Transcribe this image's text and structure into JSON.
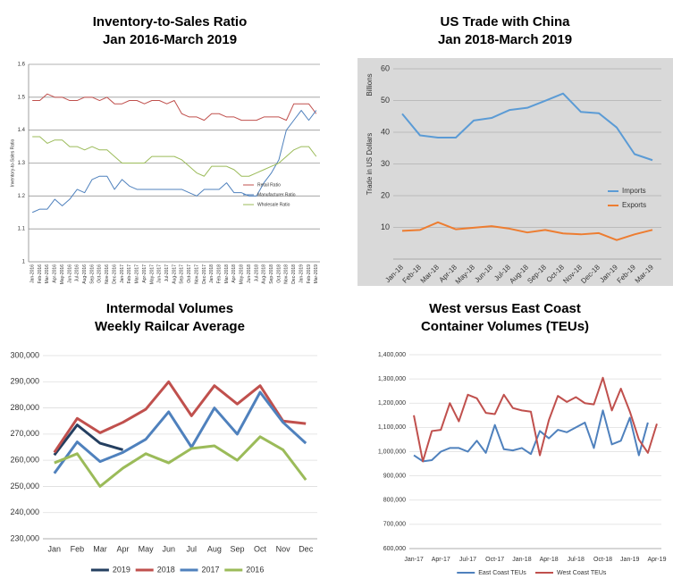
{
  "chart_data": [
    {
      "type": "line",
      "title": "Inventory-to-Sales Ratio",
      "subtitle": "Jan 2016-March 2019",
      "ylabel": "Inventory-to-Sales Ratio",
      "categories": [
        "Jan-2016",
        "Feb-2016",
        "Mar-2016",
        "Apr-2016",
        "May-2016",
        "Jun-2016",
        "Jul-2016",
        "Aug-2016",
        "Sep-2016",
        "Oct-2016",
        "Nov-2016",
        "Dec-2016",
        "Jan-2017",
        "Feb-2017",
        "Mar-2017",
        "Apr-2017",
        "May-2017",
        "Jun-2017",
        "Jul-2017",
        "Aug-2017",
        "Sep-2017",
        "Oct-2017",
        "Nov-2017",
        "Dec-2017",
        "Jan-2018",
        "Feb-2018",
        "Mar-2018",
        "Apr-2018",
        "May-2018",
        "Jun-2018",
        "Jul-2018",
        "Aug-2018",
        "Sep-2018",
        "Oct-2018",
        "Nov-2018",
        "Dec-2018",
        "Jan-2019",
        "Feb-2019",
        "Mar-2019"
      ],
      "series": [
        {
          "name": "Retail Ratio",
          "color": "#c0504d",
          "values": [
            1.49,
            1.49,
            1.51,
            1.5,
            1.5,
            1.49,
            1.49,
            1.5,
            1.5,
            1.49,
            1.5,
            1.48,
            1.48,
            1.49,
            1.49,
            1.48,
            1.49,
            1.49,
            1.48,
            1.49,
            1.45,
            1.44,
            1.44,
            1.43,
            1.45,
            1.45,
            1.44,
            1.44,
            1.43,
            1.43,
            1.43,
            1.44,
            1.44,
            1.44,
            1.43,
            1.48,
            1.48,
            1.48,
            1.45
          ]
        },
        {
          "name": "Manufacturer Ratio",
          "color": "#4f81bd",
          "values": [
            1.15,
            1.16,
            1.16,
            1.19,
            1.17,
            1.19,
            1.22,
            1.21,
            1.25,
            1.26,
            1.26,
            1.22,
            1.25,
            1.23,
            1.22,
            1.22,
            1.22,
            1.22,
            1.22,
            1.22,
            1.22,
            1.21,
            1.2,
            1.22,
            1.22,
            1.22,
            1.24,
            1.21,
            1.21,
            1.2,
            1.2,
            1.24,
            1.27,
            1.31,
            1.4,
            1.43,
            1.46,
            1.43,
            1.46
          ]
        },
        {
          "name": "Wholesale Ratio",
          "color": "#9bbb59",
          "values": [
            1.38,
            1.38,
            1.36,
            1.37,
            1.37,
            1.35,
            1.35,
            1.34,
            1.35,
            1.34,
            1.34,
            1.32,
            1.3,
            1.3,
            1.3,
            1.3,
            1.32,
            1.32,
            1.32,
            1.32,
            1.31,
            1.29,
            1.27,
            1.26,
            1.29,
            1.29,
            1.29,
            1.28,
            1.26,
            1.26,
            1.27,
            1.28,
            1.29,
            1.3,
            1.32,
            1.34,
            1.35,
            1.35,
            1.32
          ]
        }
      ],
      "ylim": [
        1,
        1.6
      ],
      "yticks": [
        1,
        1.1,
        1.2,
        1.3,
        1.4,
        1.5,
        1.6
      ],
      "grid": true,
      "legend": "inside right"
    },
    {
      "type": "line",
      "title": "US Trade with China",
      "subtitle": "Jan 2018-March 2019",
      "ylabel": "Trade in US Dollars",
      "yunit": "Billions",
      "categories": [
        "Jan-18",
        "Feb-18",
        "Mar-18",
        "Apr-18",
        "May-18",
        "Jun-18",
        "Jul-18",
        "Aug-18",
        "Sep-18",
        "Oct-18",
        "Nov-18",
        "Dec-18",
        "Jan-19",
        "Feb-19",
        "Mar-19"
      ],
      "series": [
        {
          "name": "Imports",
          "color": "#5b9bd5",
          "values": [
            45.8,
            39.0,
            38.3,
            38.3,
            43.7,
            44.5,
            47.0,
            47.7,
            49.9,
            52.2,
            46.4,
            46.0,
            41.5,
            33.1,
            31.2
          ]
        },
        {
          "name": "Exports",
          "color": "#ed7d31",
          "values": [
            8.9,
            9.2,
            11.6,
            9.4,
            9.9,
            10.4,
            9.6,
            8.4,
            9.2,
            8.1,
            7.8,
            8.2,
            6.0,
            7.8,
            9.2
          ]
        }
      ],
      "ylim": [
        0,
        60
      ],
      "yticks": [
        10,
        20,
        30,
        40,
        50,
        60
      ],
      "grid": true,
      "legend": "right"
    },
    {
      "type": "line",
      "title": "Intermodal Volumes",
      "subtitle": "Weekly Railcar Average",
      "categories": [
        "Jan",
        "Feb",
        "Mar",
        "Apr",
        "May",
        "Jun",
        "Jul",
        "Aug",
        "Sep",
        "Oct",
        "Nov",
        "Dec"
      ],
      "series": [
        {
          "name": "2019",
          "color": "#243f60",
          "values": [
            262000,
            273500,
            266500,
            264000,
            null,
            null,
            null,
            null,
            null,
            null,
            null,
            null
          ]
        },
        {
          "name": "2018",
          "color": "#c0504d",
          "values": [
            263000,
            276000,
            270500,
            274500,
            279500,
            290000,
            277000,
            288500,
            281500,
            288500,
            275000,
            274000
          ]
        },
        {
          "name": "2017",
          "color": "#4f81bd",
          "values": [
            255000,
            267000,
            259500,
            263000,
            268000,
            278500,
            265000,
            280000,
            270000,
            286000,
            274500,
            266500
          ]
        },
        {
          "name": "2016",
          "color": "#9bbb59",
          "values": [
            259000,
            262500,
            250000,
            257000,
            262500,
            259000,
            264500,
            265500,
            260000,
            269000,
            264000,
            252500
          ]
        }
      ],
      "ylim": [
        230000,
        300000
      ],
      "yticks": [
        {
          "value": 230000,
          "label": "230,000"
        },
        {
          "value": 240000,
          "label": "240,000"
        },
        {
          "value": 250000,
          "label": "250,000"
        },
        {
          "value": 260000,
          "label": "260,000"
        },
        {
          "value": 270000,
          "label": "270,000"
        },
        {
          "value": 280000,
          "label": "280,000"
        },
        {
          "value": 290000,
          "label": "290,000"
        },
        {
          "value": 300000,
          "label": "300,000"
        }
      ],
      "grid": true,
      "legend": "bottom"
    },
    {
      "type": "line",
      "title": "West versus East Coast",
      "subtitle": "Container Volumes (TEUs)",
      "categories": [
        "Jan-17",
        null,
        null,
        "Apr-17",
        null,
        null,
        "Jul-17",
        null,
        null,
        "Oct-17",
        null,
        null,
        "Jan-18",
        null,
        null,
        "Apr-18",
        null,
        null,
        "Jul-18",
        null,
        null,
        "Oct-18",
        null,
        null,
        "Jan-19",
        null,
        null,
        "Apr-19"
      ],
      "series": [
        {
          "name": "East Coast TEUs",
          "color": "#4f81bd",
          "values": [
            985000,
            960000,
            965000,
            1000000,
            1015000,
            1015000,
            1000000,
            1045000,
            995000,
            1110000,
            1010000,
            1005000,
            1015000,
            990000,
            1085000,
            1055000,
            1090000,
            1080000,
            1100000,
            1120000,
            1015000,
            1170000,
            1030000,
            1045000,
            1140000,
            985000,
            1120000,
            null
          ]
        },
        {
          "name": "West Coast TEUs",
          "color": "#c0504d",
          "values": [
            1150000,
            960000,
            1085000,
            1090000,
            1200000,
            1125000,
            1235000,
            1220000,
            1160000,
            1155000,
            1235000,
            1180000,
            1170000,
            1165000,
            985000,
            1130000,
            1230000,
            1205000,
            1225000,
            1200000,
            1195000,
            1305000,
            1170000,
            1260000,
            1165000,
            1050000,
            995000,
            1115000
          ]
        }
      ],
      "ylim": [
        600000,
        1400000
      ],
      "yticks": [
        {
          "value": 600000,
          "label": "600,000"
        },
        {
          "value": 700000,
          "label": "700,000"
        },
        {
          "value": 800000,
          "label": "800,000"
        },
        {
          "value": 900000,
          "label": "900,000"
        },
        {
          "value": 1000000,
          "label": "1,000,000"
        },
        {
          "value": 1100000,
          "label": "1,100,000"
        },
        {
          "value": 1200000,
          "label": "1,200,000"
        },
        {
          "value": 1300000,
          "label": "1,300,000"
        },
        {
          "value": 1400000,
          "label": "1,400,000"
        }
      ],
      "grid": true,
      "legend": "bottom"
    }
  ]
}
